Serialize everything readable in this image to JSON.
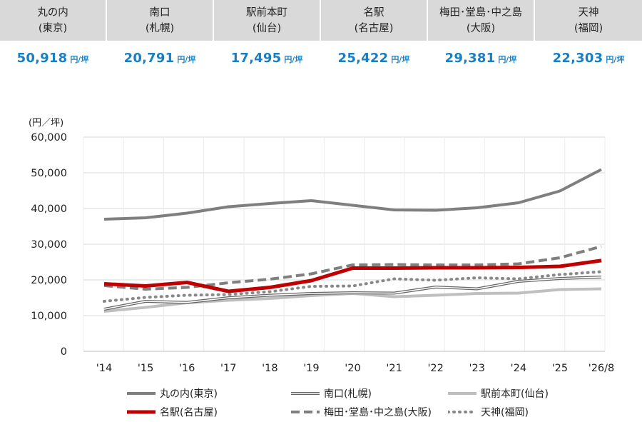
{
  "cards": [
    {
      "name": "丸の内",
      "region": "(東京)",
      "value": "50,918",
      "unit": "円/坪"
    },
    {
      "name": "南口",
      "region": "(札幌)",
      "value": "20,791",
      "unit": "円/坪"
    },
    {
      "name": "駅前本町",
      "region": "(仙台)",
      "value": "17,495",
      "unit": "円/坪"
    },
    {
      "name": "名駅",
      "region": "(名古屋)",
      "value": "25,422",
      "unit": "円/坪"
    },
    {
      "name": "梅田･堂島･中之島",
      "region": "(大阪)",
      "value": "29,381",
      "unit": "円/坪"
    },
    {
      "name": "天神",
      "region": "(福岡)",
      "value": "22,303",
      "unit": "円/坪"
    }
  ],
  "colors": {
    "header_bg": "#d9d9d9",
    "value_text": "#1a7fc1"
  },
  "chart_data": {
    "type": "line",
    "ylabel": "(円／坪)",
    "ylim": [
      0,
      60000
    ],
    "yticks": [
      0,
      10000,
      20000,
      30000,
      40000,
      50000,
      60000
    ],
    "ytick_labels": [
      "0",
      "10,000",
      "20,000",
      "30,000",
      "40,000",
      "50,000",
      "60,000"
    ],
    "categories": [
      "'14",
      "'15",
      "'16",
      "'17",
      "'18",
      "'19",
      "'20",
      "'21",
      "'22",
      "'23",
      "'24",
      "'25",
      "'26/8"
    ],
    "grid": true,
    "legend_position": "bottom",
    "series": [
      {
        "name": "丸の内(東京)",
        "color": "#7f7f7f",
        "style": "solid",
        "values": [
          37000,
          37400,
          38700,
          40500,
          41400,
          42200,
          40900,
          39600,
          39500,
          40200,
          41600,
          44900,
          50918
        ]
      },
      {
        "name": "南口(札幌)",
        "color": "#666666",
        "style": "double",
        "values": [
          11800,
          14000,
          13700,
          15000,
          15700,
          16200,
          16400,
          16300,
          18000,
          17500,
          19600,
          20400,
          20791
        ]
      },
      {
        "name": "駅前本町(仙台)",
        "color": "#bfbfbf",
        "style": "solid",
        "values": [
          11200,
          12300,
          13600,
          14300,
          14800,
          15600,
          16200,
          15300,
          15700,
          16200,
          16300,
          17300,
          17495
        ]
      },
      {
        "name": "名駅(名古屋)",
        "color": "#c00000",
        "style": "solid",
        "values": [
          18900,
          18300,
          19300,
          16800,
          17900,
          19800,
          23300,
          23300,
          23400,
          23400,
          23500,
          23800,
          25422
        ]
      },
      {
        "name": "梅田･堂島･中之島(大阪)",
        "color": "#7f7f7f",
        "style": "dashed",
        "values": [
          18400,
          17400,
          17900,
          19200,
          20200,
          21700,
          24200,
          24300,
          24200,
          24200,
          24500,
          26200,
          29381
        ]
      },
      {
        "name": "天神(福岡)",
        "color": "#888888",
        "style": "dotted",
        "values": [
          14000,
          15100,
          15700,
          15900,
          16700,
          18200,
          18300,
          20300,
          19900,
          20600,
          20300,
          21500,
          22303
        ]
      }
    ]
  }
}
